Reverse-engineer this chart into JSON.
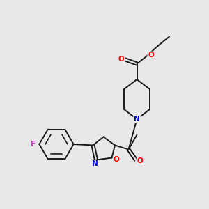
{
  "background_color": "#e8e8e8",
  "bond_color": "#1a1a1a",
  "atom_colors": {
    "O": "#ff0000",
    "N": "#0000cc",
    "F": "#cc44cc",
    "C": "#1a1a1a"
  },
  "figsize": [
    3.0,
    3.0
  ],
  "dpi": 100,
  "lw": 1.4,
  "fontsize": 7.5
}
